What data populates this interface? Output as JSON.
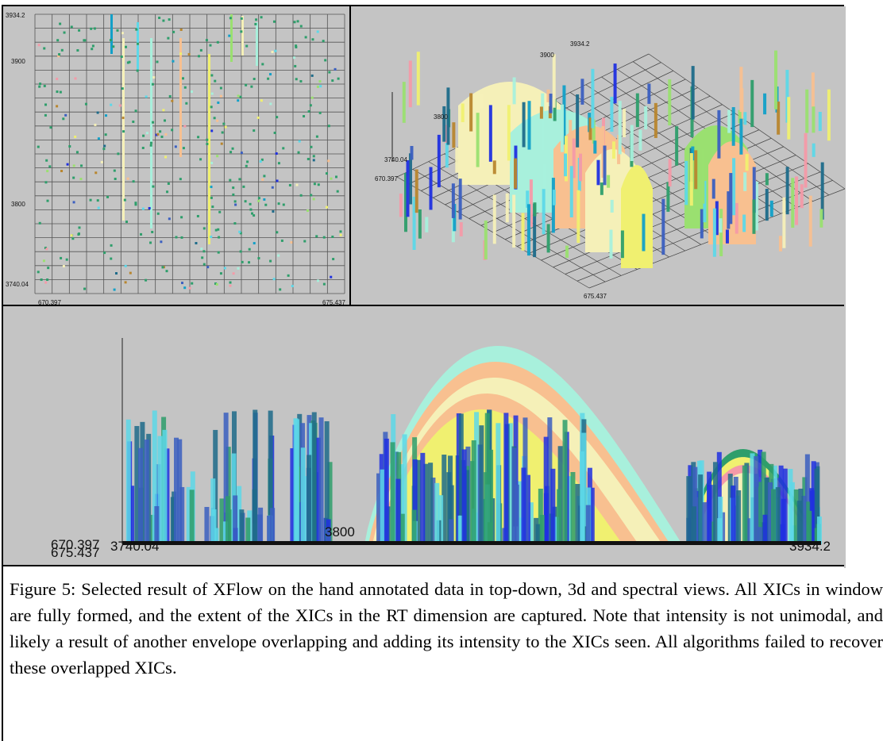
{
  "topdown_view": {
    "y_tick_top": "3934.2",
    "y_tick_3900": "3900",
    "y_tick_3800": "3800",
    "y_tick_bottom": "3740.04",
    "x_tick_left": "670.397",
    "x_tick_right": "675.437"
  },
  "view_3d": {
    "label_top": "3934.2",
    "label_3900": "3900",
    "label_3800": "3800",
    "label_min_rt": "3740.04",
    "label_min_mz": "670.397",
    "label_max_mz": "675.437"
  },
  "spectral_view": {
    "label_left_1": "670.397",
    "label_left_2": "675.437",
    "label_left_3": "3740.04",
    "label_mid": "3800",
    "label_right": "3934.2"
  },
  "caption": {
    "text": " Figure 5: Selected result of XFlow on the hand annotated data in top-down, 3d and spectral views. All XICs in window are fully formed, and the extent of the XICs in the RT dimension are captured.  Note that intensity is not unimodal, and likely a result of another envelope overlapping and adding its intensity to the XICs seen. All algorithms failed to recover these overlapped XICs."
  },
  "colors": {
    "background": "#bdbdbd",
    "grid": "#555555",
    "palette": [
      "#f5f0b8",
      "#a8f0dc",
      "#f8c090",
      "#f0f070",
      "#1e6b8a",
      "#2e9e6b",
      "#3b5fc0",
      "#2030e0",
      "#5dd8e8",
      "#9ae070",
      "#f49aa8",
      "#b8862e",
      "#12a0c8"
    ]
  }
}
